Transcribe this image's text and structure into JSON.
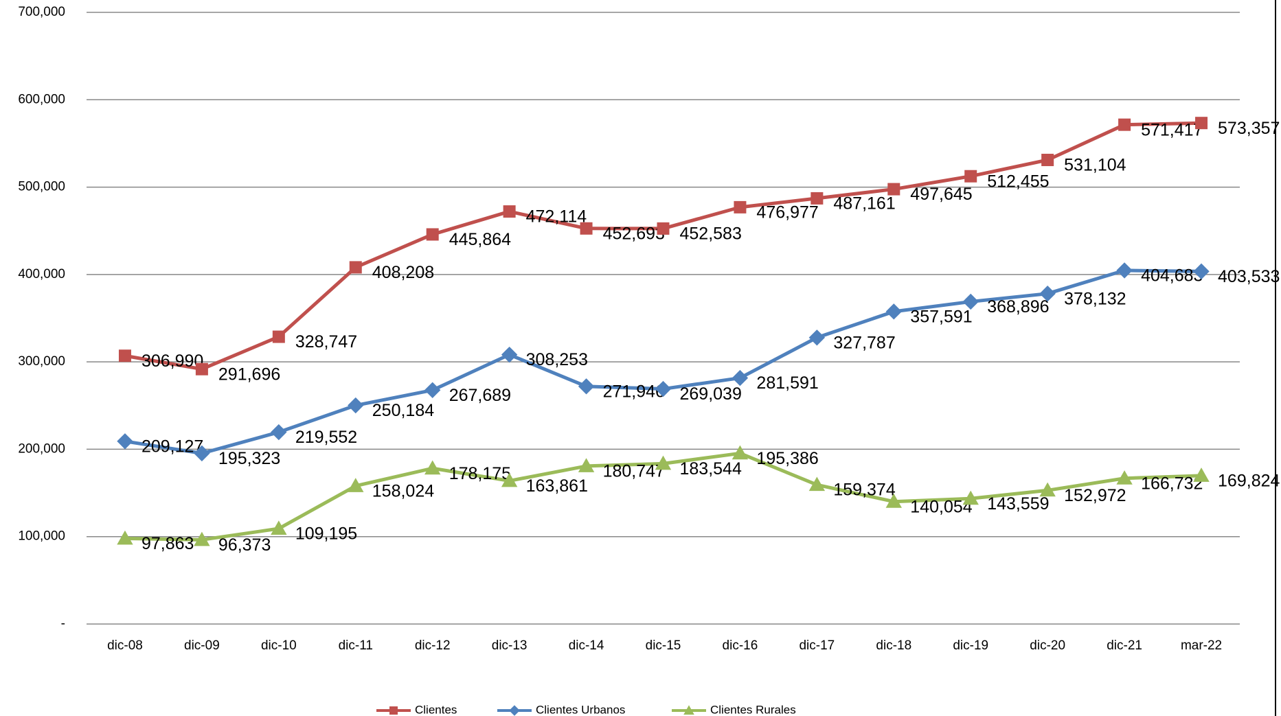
{
  "chart_data": {
    "type": "line",
    "categories": [
      "dic-08",
      "dic-09",
      "dic-10",
      "dic-11",
      "dic-12",
      "dic-13",
      "dic-14",
      "dic-15",
      "dic-16",
      "dic-17",
      "dic-18",
      "dic-19",
      "dic-20",
      "dic-21",
      "mar-22"
    ],
    "ylim": [
      0,
      700000
    ],
    "yticks": [
      {
        "value": 0,
        "label": "-"
      },
      {
        "value": 100000,
        "label": "100,000"
      },
      {
        "value": 200000,
        "label": "200,000"
      },
      {
        "value": 300000,
        "label": "300,000"
      },
      {
        "value": 400000,
        "label": "400,000"
      },
      {
        "value": 500000,
        "label": "500,000"
      },
      {
        "value": 600000,
        "label": "600,000"
      },
      {
        "value": 700000,
        "label": "700,000"
      }
    ],
    "grid": true,
    "legend": "bottom",
    "series": [
      {
        "name": "Clientes",
        "color": "#c0504d",
        "marker": "square",
        "values": [
          306990,
          291696,
          328747,
          408208,
          445864,
          472114,
          452693,
          452583,
          476977,
          487161,
          497645,
          512455,
          531104,
          571417,
          573357
        ],
        "value_labels": [
          "306,990",
          "291,696",
          "328,747",
          "408,208",
          "445,864",
          "472,114",
          "452,693",
          "452,583",
          "476,977",
          "487,161",
          "497,645",
          "512,455",
          "531,104",
          "571,417",
          "573,357"
        ]
      },
      {
        "name": "Clientes Urbanos",
        "color": "#4f81bd",
        "marker": "diamond",
        "values": [
          209127,
          195323,
          219552,
          250184,
          267689,
          308253,
          271946,
          269039,
          281591,
          327787,
          357591,
          368896,
          378132,
          404683,
          403533
        ],
        "value_labels": [
          "209,127",
          "195,323",
          "219,552",
          "250,184",
          "267,689",
          "308,253",
          "271,946",
          "269,039",
          "281,591",
          "327,787",
          "357,591",
          "368,896",
          "378,132",
          "404,683",
          "403,533"
        ]
      },
      {
        "name": "Clientes Rurales",
        "color": "#9bbb59",
        "marker": "triangle",
        "values": [
          97863,
          96373,
          109195,
          158024,
          178175,
          163861,
          180747,
          183544,
          195386,
          159374,
          140054,
          143559,
          152972,
          166732,
          169824
        ],
        "value_labels": [
          "97,863",
          "96,373",
          "109,195",
          "158,024",
          "178,175",
          "163,861",
          "180,747",
          "183,544",
          "195,386",
          "159,374",
          "140,054",
          "143,559",
          "152,972",
          "166,732",
          "169,824"
        ]
      }
    ]
  }
}
